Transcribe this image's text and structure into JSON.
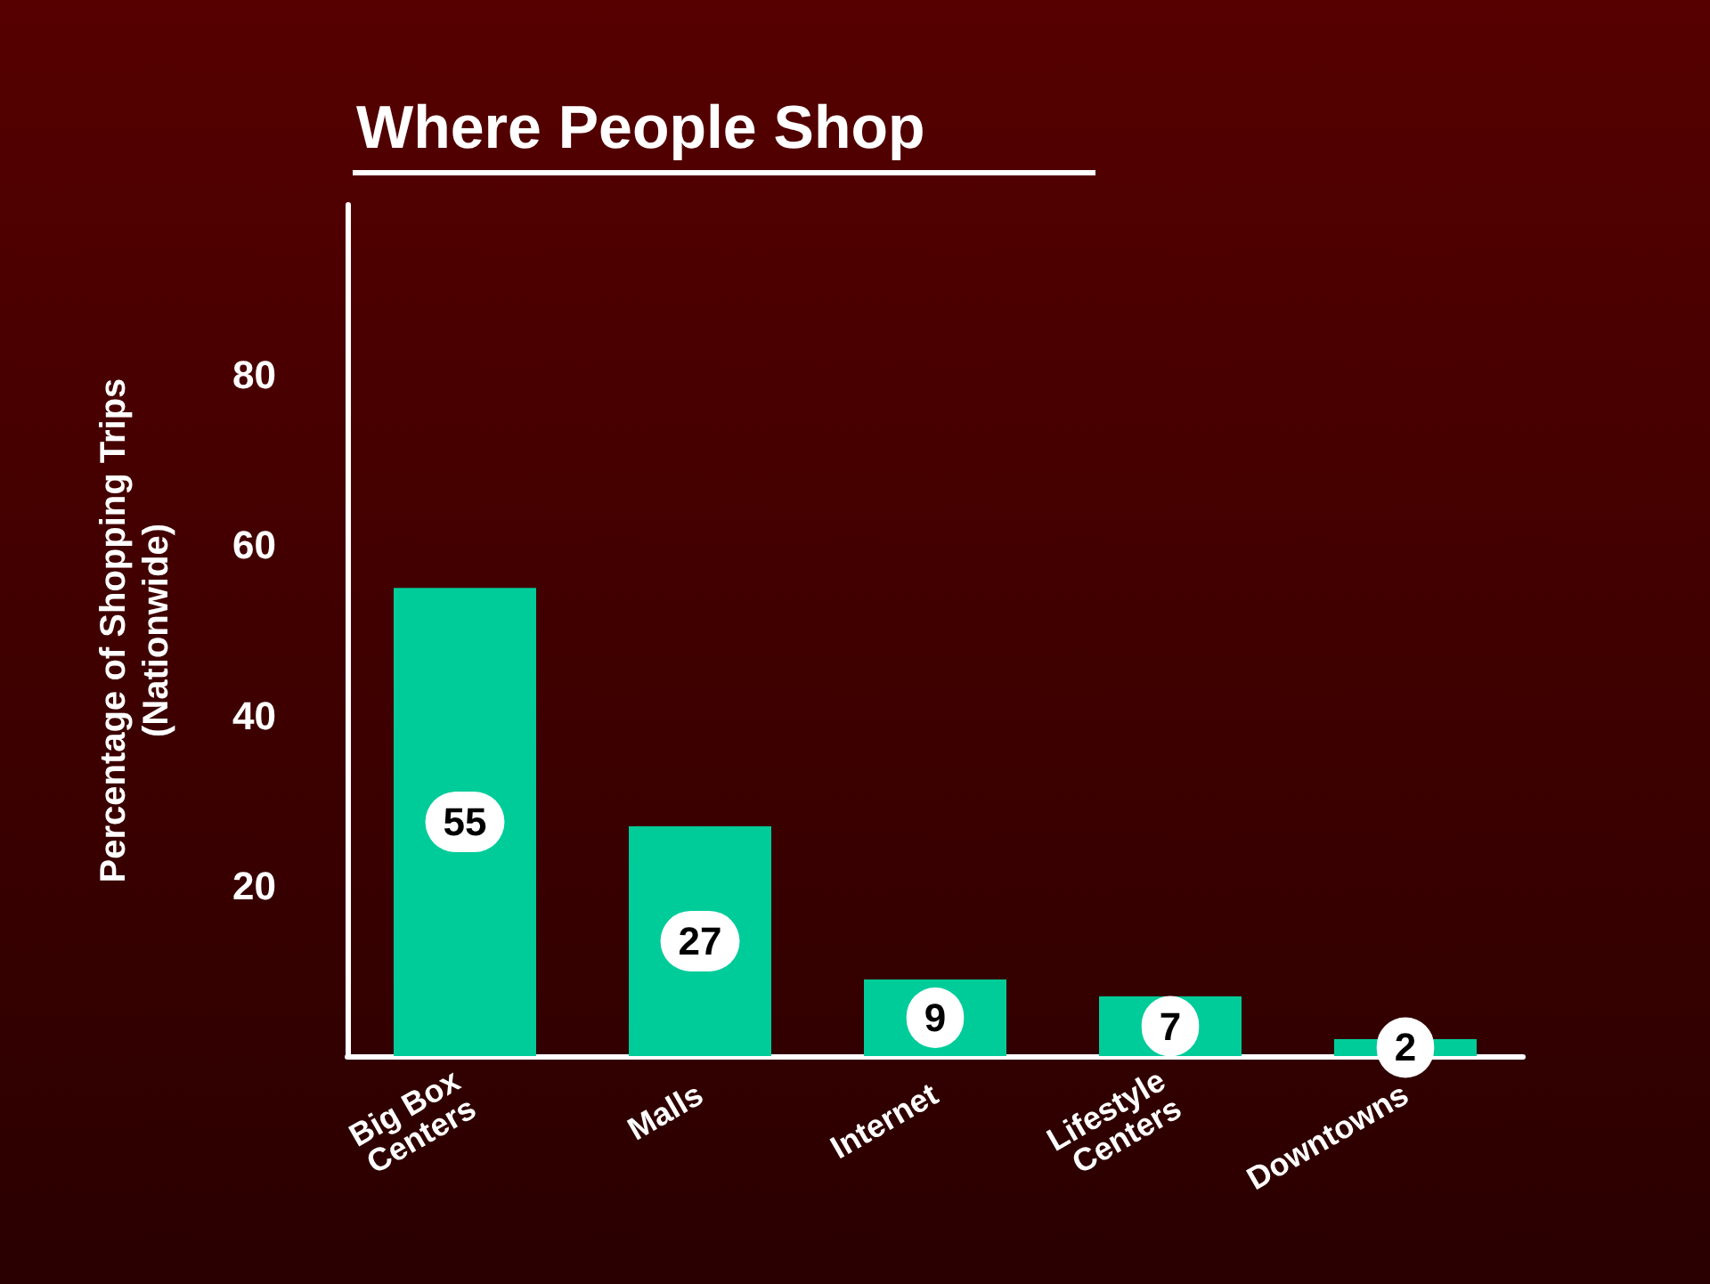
{
  "chart_data": {
    "type": "bar",
    "title": "Where People Shop",
    "ylabel": "Percentage of Shopping Trips\n(Nationwide)",
    "categories": [
      "Big Box\nCenters",
      "Malls",
      "Internet",
      "Lifestyle\nCenters",
      "Downtowns"
    ],
    "values": [
      55,
      27,
      9,
      7,
      2
    ],
    "color": "#00cc99",
    "ylim": [
      0,
      100
    ],
    "yticks": [
      20,
      40,
      60,
      80
    ],
    "data_labels": true
  }
}
